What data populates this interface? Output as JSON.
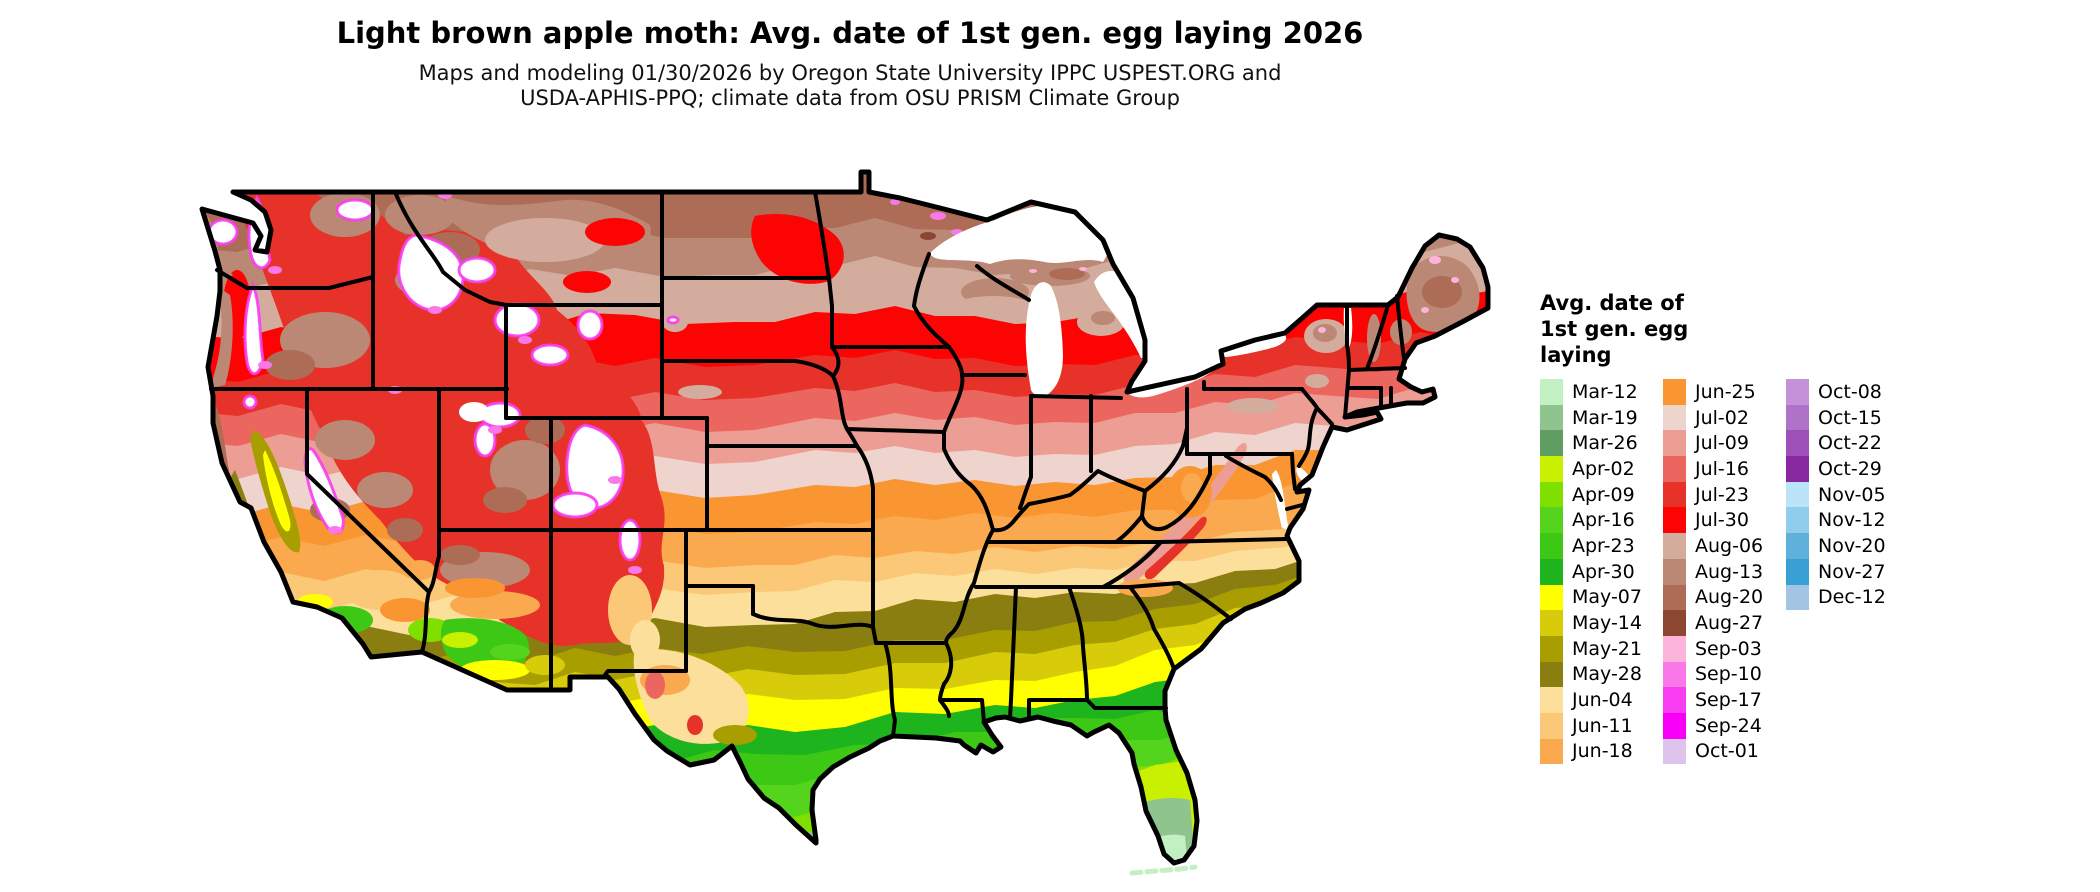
{
  "header": {
    "title": "Light brown apple moth: Avg. date of 1st gen. egg laying 2026",
    "subtitle_line1": "Maps and modeling 01/30/2026 by Oregon State University IPPC USPEST.ORG and",
    "subtitle_line2": "USDA-APHIS-PPQ; climate data from OSU PRISM Climate Group"
  },
  "legend": {
    "title_lines": [
      "Avg. date of",
      "1st gen. egg",
      "laying"
    ],
    "entries": [
      {
        "label": "Mar-12",
        "color": "#c2f0c2"
      },
      {
        "label": "Mar-19",
        "color": "#8fc48f"
      },
      {
        "label": "Mar-26",
        "color": "#5f9e62"
      },
      {
        "label": "Apr-02",
        "color": "#c8f000"
      },
      {
        "label": "Apr-09",
        "color": "#7fe000"
      },
      {
        "label": "Apr-16",
        "color": "#55d41e"
      },
      {
        "label": "Apr-23",
        "color": "#3cc814"
      },
      {
        "label": "Apr-30",
        "color": "#1eb41e"
      },
      {
        "label": "May-07",
        "color": "#ffff00"
      },
      {
        "label": "May-14",
        "color": "#d8cc0a"
      },
      {
        "label": "May-21",
        "color": "#a89e00"
      },
      {
        "label": "May-28",
        "color": "#8a7e10"
      },
      {
        "label": "Jun-04",
        "color": "#fbdf9b"
      },
      {
        "label": "Jun-11",
        "color": "#fbc878"
      },
      {
        "label": "Jun-18",
        "color": "#faa94f"
      },
      {
        "label": "Jun-25",
        "color": "#f99632"
      },
      {
        "label": "Jul-02",
        "color": "#eed4cc"
      },
      {
        "label": "Jul-09",
        "color": "#ec9e94"
      },
      {
        "label": "Jul-16",
        "color": "#ec6660"
      },
      {
        "label": "Jul-23",
        "color": "#e63228"
      },
      {
        "label": "Jul-30",
        "color": "#fc0404"
      },
      {
        "label": "Aug-06",
        "color": "#d4ac9e"
      },
      {
        "label": "Aug-13",
        "color": "#bc8876"
      },
      {
        "label": "Aug-20",
        "color": "#ac6c56"
      },
      {
        "label": "Aug-27",
        "color": "#8c4632"
      },
      {
        "label": "Sep-03",
        "color": "#fcb4dc"
      },
      {
        "label": "Sep-10",
        "color": "#f878e8"
      },
      {
        "label": "Sep-17",
        "color": "#f83cf0"
      },
      {
        "label": "Sep-24",
        "color": "#f800f8"
      },
      {
        "label": "Oct-01",
        "color": "#dcc4ec"
      },
      {
        "label": "Oct-08",
        "color": "#c492d8"
      },
      {
        "label": "Oct-15",
        "color": "#b072c8"
      },
      {
        "label": "Oct-22",
        "color": "#9c50b8"
      },
      {
        "label": "Oct-29",
        "color": "#8828a0"
      },
      {
        "label": "Nov-05",
        "color": "#bce4f8"
      },
      {
        "label": "Nov-12",
        "color": "#90ccec"
      },
      {
        "label": "Nov-20",
        "color": "#60b0dc"
      },
      {
        "label": "Nov-27",
        "color": "#38a0d4"
      },
      {
        "label": "Dec-12",
        "color": "#a4c4e4"
      }
    ]
  },
  "chart_data": {
    "type": "choropleth-map",
    "title": "Light brown apple moth: Avg. date of 1st gen. egg laying 2026",
    "region": "Continental United States with state boundaries",
    "variable": "Average date of first generation egg laying",
    "legend_title": "Avg. date of 1st gen. egg laying",
    "legend_position": "right",
    "classes": [
      "Mar-12",
      "Mar-19",
      "Mar-26",
      "Apr-02",
      "Apr-09",
      "Apr-16",
      "Apr-23",
      "Apr-30",
      "May-07",
      "May-14",
      "May-21",
      "May-28",
      "Jun-04",
      "Jun-11",
      "Jun-18",
      "Jun-25",
      "Jul-02",
      "Jul-09",
      "Jul-16",
      "Jul-23",
      "Jul-30",
      "Aug-06",
      "Aug-13",
      "Aug-20",
      "Aug-27",
      "Sep-03",
      "Sep-10",
      "Sep-17",
      "Sep-24",
      "Oct-01",
      "Oct-08",
      "Oct-15",
      "Oct-22",
      "Oct-29",
      "Nov-05",
      "Nov-12",
      "Nov-20",
      "Nov-27",
      "Dec-12"
    ],
    "spatial_pattern": [
      {
        "area": "Florida Keys and extreme southern Florida tip",
        "date_class": "Mar-12 to Mar-19"
      },
      {
        "area": "South Florida",
        "date_class": "Mar-19 to Mar-26"
      },
      {
        "area": "Central Florida and lower Rio Grande Valley of south Texas",
        "date_class": "Apr-02 to Apr-16"
      },
      {
        "area": "North Florida, Gulf Coast, coastal/south Texas",
        "date_class": "Apr-16 to Apr-30"
      },
      {
        "area": "Southern Arizona deserts, southern California coast and Central Valley",
        "date_class": "Apr-16 to May-28 mosaic"
      },
      {
        "area": "Deep South: central Texas, Louisiana, Mississippi, Alabama, Georgia, South Carolina",
        "date_class": "May-07 to May-28"
      },
      {
        "area": "Southern Plains and mid-South: Oklahoma, Arkansas, Tennessee, New Mexico valleys, west Texas",
        "date_class": "Jun-04 to Jun-18"
      },
      {
        "area": "Central Plains and Ohio Valley south: Kansas, Missouri, Kentucky, Virginia",
        "date_class": "Jun-25 to Jul-02"
      },
      {
        "area": "Corn Belt and Mid-Atlantic: Nebraska, Iowa, Illinois, Indiana, Ohio, Pennsylvania, New Jersey",
        "date_class": "Jul-02 to Jul-16"
      },
      {
        "area": "Upper Midwest and Northeast: South Dakota, Minnesota, Wisconsin, Michigan, New York, southern New England",
        "date_class": "Jul-16 to Jul-30"
      },
      {
        "area": "North Dakota, northern Minnesota/Wisconsin/Michigan, Maine, Appalachian highlands",
        "date_class": "Aug-06 to Aug-27"
      },
      {
        "area": "Interior West: Washington/Oregon interior, Idaho, Montana, Wyoming, Nevada, Utah, Colorado, northern Arizona/New Mexico",
        "date_class": "Jul-23 to Aug-27 mosaic with Sep-03 to Sep-24 magenta fringes"
      },
      {
        "area": "High mountains (Cascades, Sierra Nevada, Rockies)",
        "date_class": "white (beyond legend range)"
      }
    ]
  }
}
